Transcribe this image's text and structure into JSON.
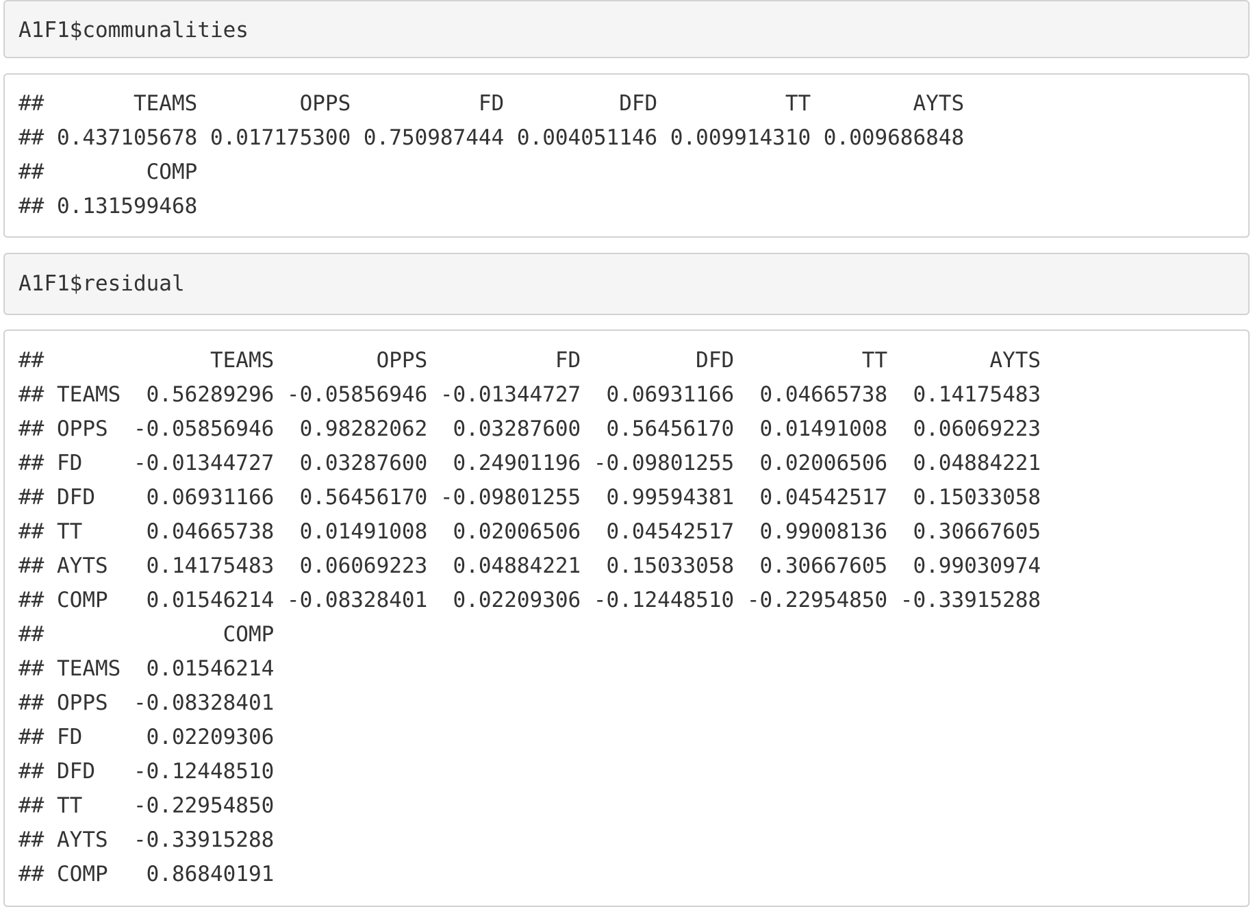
{
  "cells": [
    {
      "code": "A1F1$communalities",
      "output": [
        "##       TEAMS        OPPS          FD         DFD          TT        AYTS ",
        "## 0.437105678 0.017175300 0.750987444 0.004051146 0.009914310 0.009686848 ",
        "##        COMP ",
        "## 0.131599468 "
      ]
    },
    {
      "code": "A1F1$residual",
      "output": [
        "##             TEAMS        OPPS          FD         DFD          TT        AYTS",
        "## TEAMS  0.56289296 -0.05856946 -0.01344727  0.06931166  0.04665738  0.14175483",
        "## OPPS  -0.05856946  0.98282062  0.03287600  0.56456170  0.01491008  0.06069223",
        "## FD    -0.01344727  0.03287600  0.24901196 -0.09801255  0.02006506  0.04884221",
        "## DFD    0.06931166  0.56456170 -0.09801255  0.99594381  0.04542517  0.15033058",
        "## TT     0.04665738  0.01491008  0.02006506  0.04542517  0.99008136  0.30667605",
        "## AYTS   0.14175483  0.06069223  0.04884221  0.15033058  0.30667605  0.99030974",
        "## COMP   0.01546214 -0.08328401  0.02209306 -0.12448510 -0.22954850 -0.33915288",
        "##              COMP",
        "## TEAMS  0.01546214",
        "## OPPS  -0.08328401",
        "## FD     0.02209306",
        "## DFD   -0.12448510",
        "## TT    -0.22954850",
        "## AYTS  -0.33915288",
        "## COMP   0.86840191"
      ]
    }
  ]
}
